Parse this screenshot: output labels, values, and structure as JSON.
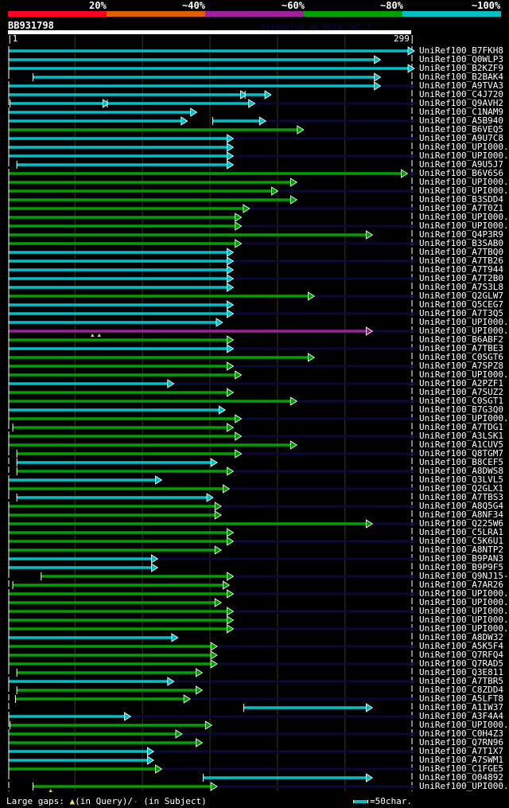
{
  "header": {
    "percent_labels": [
      "20%",
      "~40%",
      "~60%",
      "~80%",
      "~100%"
    ],
    "percent_colors": [
      "#ff0022",
      "#e06000",
      "#a020a0",
      "#00a000",
      "#00c0c8"
    ],
    "query_name": "BB931798",
    "version_text": "AlignView.pm Beta rel.7",
    "query_start": "|1",
    "query_end": "299|",
    "query_length": 299
  },
  "colors": {
    "cyan": "#00c0c8",
    "green": "#00a000",
    "magenta": "#a020a0",
    "tail": "#0a0a3a",
    "grid": "#3a3a10"
  },
  "legend": {
    "label": "Large gaps:",
    "query_gap": "(in Query)/",
    "subject_gap": "(in Subject)",
    "scale_text": "=50char."
  },
  "hits": [
    {
      "name": "UniRef100_B7FKH8",
      "color": "cyan",
      "segs": [
        [
          1,
          299
        ]
      ],
      "tail": true
    },
    {
      "name": "UniRef100_Q0WLP3",
      "color": "cyan",
      "segs": [
        [
          1,
          274
        ]
      ],
      "tail": false
    },
    {
      "name": "UniRef100_B2KZF9",
      "color": "cyan",
      "segs": [
        [
          1,
          299
        ]
      ],
      "tail": true
    },
    {
      "name": "UniRef100_B2BAK4",
      "color": "cyan",
      "segs": [
        [
          19,
          274
        ]
      ],
      "tail": false
    },
    {
      "name": "UniRef100_A9TVA3",
      "color": "cyan",
      "segs": [
        [
          1,
          274
        ]
      ],
      "tail": true
    },
    {
      "name": "UniRef100_C4J720",
      "color": "cyan",
      "segs": [
        [
          1,
          175
        ],
        [
          176,
          193
        ]
      ],
      "tail": false
    },
    {
      "name": "UniRef100_Q9AVH2",
      "color": "cyan",
      "segs": [
        [
          2,
          73
        ],
        [
          74,
          181
        ]
      ],
      "tail": true
    },
    {
      "name": "UniRef100_C1NAM9",
      "color": "cyan",
      "segs": [
        [
          1,
          138
        ]
      ],
      "tail": false
    },
    {
      "name": "UniRef100_A5B940",
      "color": "cyan",
      "segs": [
        [
          1,
          131
        ],
        [
          152,
          189
        ]
      ],
      "tail": true
    },
    {
      "name": "UniRef100_B6VEQ5",
      "color": "green",
      "segs": [
        [
          1,
          217
        ]
      ],
      "tail": false
    },
    {
      "name": "UniRef100_A9U7C8",
      "color": "cyan",
      "segs": [
        [
          1,
          165
        ]
      ],
      "tail": true
    },
    {
      "name": "UniRef100_UPI000..",
      "color": "cyan",
      "segs": [
        [
          1,
          165
        ]
      ],
      "tail": false
    },
    {
      "name": "UniRef100_UPI000..",
      "color": "cyan",
      "segs": [
        [
          1,
          165
        ]
      ],
      "tail": true
    },
    {
      "name": "UniRef100_A9U5J7",
      "color": "cyan",
      "segs": [
        [
          7,
          165
        ]
      ],
      "tail": false
    },
    {
      "name": "UniRef100_B6V6S6",
      "color": "green",
      "segs": [
        [
          1,
          294
        ]
      ],
      "tail": true
    },
    {
      "name": "UniRef100_UPI000..",
      "color": "green",
      "segs": [
        [
          1,
          212
        ]
      ],
      "tail": false
    },
    {
      "name": "UniRef100_UPI000..",
      "color": "green",
      "segs": [
        [
          1,
          198
        ]
      ],
      "tail": true
    },
    {
      "name": "UniRef100_B3SDD4",
      "color": "green",
      "segs": [
        [
          1,
          212
        ]
      ],
      "tail": false
    },
    {
      "name": "UniRef100_A7T0Z1",
      "color": "green",
      "segs": [
        [
          1,
          177
        ]
      ],
      "tail": true
    },
    {
      "name": "UniRef100_UPI000..",
      "color": "green",
      "segs": [
        [
          1,
          171
        ]
      ],
      "tail": false
    },
    {
      "name": "UniRef100_UPI000..",
      "color": "green",
      "segs": [
        [
          1,
          171
        ]
      ],
      "tail": true
    },
    {
      "name": "UniRef100_Q4P3R9",
      "color": "green",
      "segs": [
        [
          1,
          268
        ]
      ],
      "tail": false
    },
    {
      "name": "UniRef100_B3SAB0",
      "color": "green",
      "segs": [
        [
          1,
          171
        ]
      ],
      "tail": true
    },
    {
      "name": "UniRef100_A7TBQ0",
      "color": "cyan",
      "segs": [
        [
          1,
          165
        ]
      ],
      "tail": false
    },
    {
      "name": "UniRef100_A7TB26",
      "color": "cyan",
      "segs": [
        [
          1,
          165
        ]
      ],
      "tail": true
    },
    {
      "name": "UniRef100_A7T944",
      "color": "cyan",
      "segs": [
        [
          1,
          165
        ]
      ],
      "tail": false
    },
    {
      "name": "UniRef100_A7T2B0",
      "color": "cyan",
      "segs": [
        [
          1,
          165
        ]
      ],
      "tail": true
    },
    {
      "name": "UniRef100_A7S3L8",
      "color": "cyan",
      "segs": [
        [
          1,
          165
        ]
      ],
      "tail": false
    },
    {
      "name": "UniRef100_Q2GLW7",
      "color": "green",
      "segs": [
        [
          1,
          225
        ]
      ],
      "tail": true
    },
    {
      "name": "UniRef100_Q5CEG7",
      "color": "cyan",
      "segs": [
        [
          1,
          165
        ]
      ],
      "tail": false
    },
    {
      "name": "UniRef100_A7T3Q5",
      "color": "cyan",
      "segs": [
        [
          1,
          165
        ]
      ],
      "tail": true
    },
    {
      "name": "UniRef100_UPI000..",
      "color": "cyan",
      "segs": [
        [
          1,
          157
        ]
      ],
      "tail": false
    },
    {
      "name": "UniRef100_UPI000..",
      "color": "magenta",
      "segs": [
        [
          1,
          268
        ]
      ],
      "tail": true,
      "qgaps": [
        63,
        68
      ]
    },
    {
      "name": "UniRef100_B6ABF2",
      "color": "green",
      "segs": [
        [
          1,
          165
        ]
      ],
      "tail": false
    },
    {
      "name": "UniRef100_A7TBE3",
      "color": "cyan",
      "segs": [
        [
          1,
          165
        ]
      ],
      "tail": true
    },
    {
      "name": "UniRef100_C0SGT6",
      "color": "green",
      "segs": [
        [
          1,
          225
        ]
      ],
      "tail": false
    },
    {
      "name": "UniRef100_A7SPZ8",
      "color": "green",
      "segs": [
        [
          1,
          165
        ]
      ],
      "tail": true
    },
    {
      "name": "UniRef100_UPI000..",
      "color": "green",
      "segs": [
        [
          1,
          171
        ]
      ],
      "tail": false
    },
    {
      "name": "UniRef100_A2PZF1",
      "color": "cyan",
      "segs": [
        [
          1,
          121
        ]
      ],
      "tail": true
    },
    {
      "name": "UniRef100_A7SUZ2",
      "color": "green",
      "segs": [
        [
          1,
          165
        ]
      ],
      "tail": false
    },
    {
      "name": "UniRef100_C0SGT1",
      "color": "green",
      "segs": [
        [
          1,
          212
        ]
      ],
      "tail": true
    },
    {
      "name": "UniRef100_B7G3Q0",
      "color": "cyan",
      "segs": [
        [
          1,
          159
        ]
      ],
      "tail": false
    },
    {
      "name": "UniRef100_UPI000..",
      "color": "green",
      "segs": [
        [
          1,
          171
        ]
      ],
      "tail": true
    },
    {
      "name": "UniRef100_A7TDG1",
      "color": "green",
      "segs": [
        [
          4,
          165
        ]
      ],
      "tail": false
    },
    {
      "name": "UniRef100_A3LSK1",
      "color": "green",
      "segs": [
        [
          1,
          171
        ]
      ],
      "tail": true
    },
    {
      "name": "UniRef100_A1CUV5",
      "color": "green",
      "segs": [
        [
          1,
          212
        ]
      ],
      "tail": false
    },
    {
      "name": "UniRef100_Q8TGM7",
      "color": "green",
      "segs": [
        [
          7,
          171
        ]
      ],
      "tail": true
    },
    {
      "name": "UniRef100_B8CEF5",
      "color": "cyan",
      "segs": [
        [
          7,
          153
        ]
      ],
      "tail": false
    },
    {
      "name": "UniRef100_A8DWS8",
      "color": "green",
      "segs": [
        [
          7,
          165
        ]
      ],
      "tail": true
    },
    {
      "name": "UniRef100_Q3LVL5",
      "color": "cyan",
      "segs": [
        [
          1,
          112
        ]
      ],
      "tail": false
    },
    {
      "name": "UniRef100_Q2GLX1",
      "color": "green",
      "segs": [
        [
          1,
          162
        ]
      ],
      "tail": true
    },
    {
      "name": "UniRef100_A7TBS3",
      "color": "cyan",
      "segs": [
        [
          7,
          150
        ]
      ],
      "tail": false
    },
    {
      "name": "UniRef100_A8Q5G4",
      "color": "green",
      "segs": [
        [
          1,
          156
        ]
      ],
      "tail": true
    },
    {
      "name": "UniRef100_A8NF34",
      "color": "green",
      "segs": [
        [
          1,
          156
        ]
      ],
      "tail": false
    },
    {
      "name": "UniRef100_Q225W6",
      "color": "green",
      "segs": [
        [
          1,
          268
        ]
      ],
      "tail": true
    },
    {
      "name": "UniRef100_C5LRA1",
      "color": "green",
      "segs": [
        [
          1,
          165
        ]
      ],
      "tail": false
    },
    {
      "name": "UniRef100_C5K6U1",
      "color": "green",
      "segs": [
        [
          1,
          165
        ]
      ],
      "tail": true
    },
    {
      "name": "UniRef100_A8NTP2",
      "color": "green",
      "segs": [
        [
          1,
          156
        ]
      ],
      "tail": false
    },
    {
      "name": "UniRef100_B9PAN3",
      "color": "cyan",
      "segs": [
        [
          1,
          109
        ]
      ],
      "tail": true
    },
    {
      "name": "UniRef100_B9P9F5",
      "color": "cyan",
      "segs": [
        [
          1,
          109
        ]
      ],
      "tail": false
    },
    {
      "name": "UniRef100_Q9NJ15-3",
      "color": "green",
      "segs": [
        [
          25,
          165
        ]
      ],
      "tail": true
    },
    {
      "name": "UniRef100_A7AR26",
      "color": "green",
      "segs": [
        [
          4,
          162
        ]
      ],
      "tail": false
    },
    {
      "name": "UniRef100_UPI000..",
      "color": "green",
      "segs": [
        [
          1,
          165
        ]
      ],
      "tail": true
    },
    {
      "name": "UniRef100_UPI000..",
      "color": "green",
      "segs": [
        [
          1,
          156
        ]
      ],
      "tail": false
    },
    {
      "name": "UniRef100_UPI000..",
      "color": "green",
      "segs": [
        [
          1,
          165
        ]
      ],
      "tail": true
    },
    {
      "name": "UniRef100_UPI000..",
      "color": "green",
      "segs": [
        [
          1,
          165
        ]
      ],
      "tail": false
    },
    {
      "name": "UniRef100_UPI000..",
      "color": "green",
      "segs": [
        [
          1,
          165
        ]
      ],
      "tail": true
    },
    {
      "name": "UniRef100_A8DW32",
      "color": "cyan",
      "segs": [
        [
          1,
          124
        ]
      ],
      "tail": false
    },
    {
      "name": "UniRef100_A5K5F4",
      "color": "green",
      "segs": [
        [
          1,
          153
        ]
      ],
      "tail": true
    },
    {
      "name": "UniRef100_Q7RFQ4",
      "color": "green",
      "segs": [
        [
          1,
          153
        ]
      ],
      "tail": false
    },
    {
      "name": "UniRef100_Q7RAD5",
      "color": "green",
      "segs": [
        [
          1,
          153
        ]
      ],
      "tail": true
    },
    {
      "name": "UniRef100_Q3E811",
      "color": "green",
      "segs": [
        [
          7,
          142
        ]
      ],
      "tail": false
    },
    {
      "name": "UniRef100_A7TBR5",
      "color": "cyan",
      "segs": [
        [
          1,
          121
        ]
      ],
      "tail": true
    },
    {
      "name": "UniRef100_C8ZDD4",
      "color": "green",
      "segs": [
        [
          7,
          142
        ]
      ],
      "tail": false
    },
    {
      "name": "UniRef100_A5LFT8",
      "color": "green",
      "segs": [
        [
          6,
          133
        ]
      ],
      "tail": true
    },
    {
      "name": "UniRef100_A1IW37",
      "color": "cyan",
      "segs": [
        [
          175,
          268
        ]
      ],
      "tail": false
    },
    {
      "name": "UniRef100_A3F4A4",
      "color": "cyan",
      "segs": [
        [
          1,
          89
        ]
      ],
      "tail": true
    },
    {
      "name": "UniRef100_UPI000..",
      "color": "green",
      "segs": [
        [
          2,
          149
        ]
      ],
      "tail": false
    },
    {
      "name": "UniRef100_C0H4Z3",
      "color": "green",
      "segs": [
        [
          1,
          127
        ]
      ],
      "tail": true
    },
    {
      "name": "UniRef100_Q7RN96",
      "color": "green",
      "segs": [
        [
          1,
          142
        ]
      ],
      "tail": false
    },
    {
      "name": "UniRef100_A7T1X7",
      "color": "cyan",
      "segs": [
        [
          1,
          106
        ]
      ],
      "tail": true
    },
    {
      "name": "UniRef100_A7SWM1",
      "color": "cyan",
      "segs": [
        [
          1,
          106
        ]
      ],
      "tail": false
    },
    {
      "name": "UniRef100_C1FGE5",
      "color": "green",
      "segs": [
        [
          1,
          112
        ]
      ],
      "tail": true
    },
    {
      "name": "UniRef100_O04892",
      "color": "cyan",
      "segs": [
        [
          145,
          268
        ]
      ],
      "tail": false
    },
    {
      "name": "UniRef100_UPI000..",
      "color": "green",
      "segs": [
        [
          19,
          153
        ]
      ],
      "tail": true,
      "qgaps": [
        32
      ]
    }
  ]
}
